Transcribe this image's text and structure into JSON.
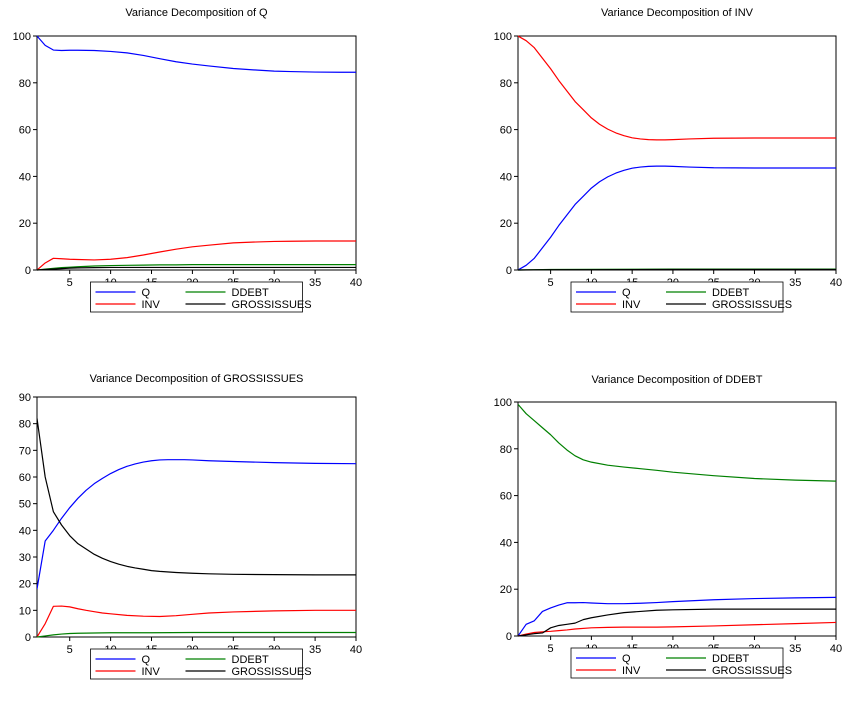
{
  "colors": {
    "Q": "#0000ff",
    "INV": "#ff0000",
    "DDEBT": "#008000",
    "GROSSISSUES": "#000000"
  },
  "legend_labels": [
    "Q",
    "DDEBT",
    "INV",
    "GROSSISSUES"
  ],
  "chart_data": [
    {
      "type": "line",
      "title": "Variance Decomposition of Q",
      "xlabel": "",
      "ylabel": "",
      "xlim": [
        1,
        40
      ],
      "ylim": [
        0,
        100
      ],
      "xticks": [
        5,
        10,
        15,
        20,
        25,
        30,
        35,
        40
      ],
      "yticks": [
        0,
        20,
        40,
        60,
        80,
        100
      ],
      "grid": false,
      "legend": "bottom",
      "series": [
        {
          "name": "Q",
          "x": [
            1,
            2,
            3,
            4,
            5,
            6,
            8,
            10,
            12,
            14,
            16,
            18,
            20,
            22,
            25,
            28,
            30,
            32,
            35,
            38,
            40
          ],
          "values": [
            100,
            96,
            94,
            93.8,
            93.9,
            93.9,
            93.8,
            93.4,
            92.8,
            91.7,
            90.3,
            89,
            88,
            87.2,
            86.1,
            85.4,
            85,
            84.8,
            84.6,
            84.5,
            84.5
          ]
        },
        {
          "name": "INV",
          "x": [
            1,
            2,
            3,
            4,
            5,
            6,
            8,
            10,
            12,
            14,
            16,
            18,
            20,
            22,
            25,
            28,
            30,
            32,
            35,
            38,
            40
          ],
          "values": [
            0,
            3,
            5,
            4.8,
            4.6,
            4.5,
            4.3,
            4.6,
            5.3,
            6.4,
            7.7,
            8.9,
            9.9,
            10.6,
            11.6,
            12,
            12.2,
            12.3,
            12.4,
            12.4,
            12.4
          ]
        },
        {
          "name": "DDEBT",
          "x": [
            1,
            2,
            3,
            4,
            5,
            6,
            8,
            10,
            12,
            14,
            16,
            18,
            20,
            25,
            30,
            35,
            40
          ],
          "values": [
            0,
            0.4,
            0.7,
            1,
            1.2,
            1.4,
            1.7,
            1.9,
            2,
            2.1,
            2.2,
            2.2,
            2.3,
            2.3,
            2.3,
            2.3,
            2.3
          ]
        },
        {
          "name": "GROSSISSUES",
          "x": [
            1,
            2,
            3,
            4,
            5,
            6,
            8,
            10,
            12,
            14,
            16,
            18,
            20,
            25,
            30,
            35,
            40
          ],
          "values": [
            0,
            0.2,
            0.4,
            0.6,
            0.8,
            0.9,
            1,
            1.1,
            1.1,
            1.1,
            1.1,
            1.1,
            1.1,
            1.1,
            1.1,
            1.1,
            1.1
          ]
        }
      ]
    },
    {
      "type": "line",
      "title": "Variance Decomposition of INV",
      "xlabel": "",
      "ylabel": "",
      "xlim": [
        1,
        40
      ],
      "ylim": [
        0,
        100
      ],
      "xticks": [
        5,
        10,
        15,
        20,
        25,
        30,
        35,
        40
      ],
      "yticks": [
        0,
        20,
        40,
        60,
        80,
        100
      ],
      "grid": false,
      "legend": "bottom",
      "series": [
        {
          "name": "Q",
          "x": [
            1,
            2,
            3,
            4,
            5,
            6,
            7,
            8,
            9,
            10,
            11,
            12,
            13,
            14,
            15,
            16,
            17,
            18,
            19,
            20,
            22,
            25,
            30,
            35,
            40
          ],
          "values": [
            0,
            2,
            5,
            9.5,
            14,
            19,
            23.5,
            28,
            31.5,
            35,
            37.7,
            39.8,
            41.4,
            42.6,
            43.5,
            44,
            44.3,
            44.4,
            44.4,
            44.3,
            44,
            43.7,
            43.6,
            43.6,
            43.6
          ]
        },
        {
          "name": "INV",
          "x": [
            1,
            2,
            3,
            4,
            5,
            6,
            7,
            8,
            9,
            10,
            11,
            12,
            13,
            14,
            15,
            16,
            17,
            18,
            19,
            20,
            22,
            25,
            30,
            35,
            40
          ],
          "values": [
            100,
            98,
            95,
            90.5,
            86,
            81,
            76.5,
            72,
            68.5,
            65,
            62.3,
            60.2,
            58.6,
            57.4,
            56.5,
            56,
            55.7,
            55.6,
            55.6,
            55.7,
            56,
            56.3,
            56.4,
            56.4,
            56.4
          ]
        },
        {
          "name": "DDEBT",
          "x": [
            1,
            5,
            10,
            20,
            30,
            40
          ],
          "values": [
            0,
            0.2,
            0.3,
            0.4,
            0.4,
            0.4
          ]
        },
        {
          "name": "GROSSISSUES",
          "x": [
            1,
            5,
            10,
            20,
            30,
            40
          ],
          "values": [
            0,
            0.1,
            0.1,
            0.2,
            0.2,
            0.2
          ]
        }
      ]
    },
    {
      "type": "line",
      "title": "Variance Decomposition of GROSSISSUES",
      "xlabel": "",
      "ylabel": "",
      "xlim": [
        1,
        40
      ],
      "ylim": [
        0,
        90
      ],
      "xticks": [
        5,
        10,
        15,
        20,
        25,
        30,
        35,
        40
      ],
      "yticks": [
        0,
        10,
        20,
        30,
        40,
        50,
        60,
        70,
        80,
        90
      ],
      "grid": false,
      "legend": "bottom",
      "series": [
        {
          "name": "Q",
          "x": [
            1,
            2,
            3,
            4,
            5,
            6,
            7,
            8,
            9,
            10,
            11,
            12,
            13,
            14,
            15,
            16,
            17,
            18,
            19,
            20,
            22,
            25,
            30,
            35,
            40
          ],
          "values": [
            18,
            36,
            40,
            44.5,
            48.5,
            52,
            55,
            57.5,
            59.5,
            61.3,
            62.8,
            64,
            64.9,
            65.6,
            66.1,
            66.4,
            66.5,
            66.5,
            66.5,
            66.4,
            66.1,
            65.8,
            65.4,
            65.1,
            65
          ]
        },
        {
          "name": "INV",
          "x": [
            1,
            2,
            3,
            4,
            5,
            6,
            7,
            8,
            9,
            10,
            12,
            14,
            16,
            18,
            20,
            22,
            25,
            30,
            35,
            40
          ],
          "values": [
            0,
            5,
            11.5,
            11.6,
            11.3,
            10.6,
            10,
            9.5,
            9,
            8.7,
            8.1,
            7.8,
            7.7,
            8,
            8.5,
            9,
            9.4,
            9.8,
            10,
            10
          ]
        },
        {
          "name": "DDEBT",
          "x": [
            1,
            2,
            3,
            4,
            5,
            6,
            8,
            10,
            15,
            20,
            30,
            40
          ],
          "values": [
            0,
            0.4,
            0.8,
            1.1,
            1.3,
            1.4,
            1.5,
            1.6,
            1.6,
            1.7,
            1.7,
            1.7
          ]
        },
        {
          "name": "GROSSISSUES",
          "x": [
            1,
            2,
            3,
            4,
            5,
            6,
            7,
            8,
            9,
            10,
            11,
            12,
            13,
            14,
            15,
            16,
            18,
            20,
            22,
            25,
            30,
            35,
            40
          ],
          "values": [
            82,
            60,
            47,
            42,
            38,
            35,
            33,
            31,
            29.5,
            28.3,
            27.3,
            26.5,
            25.9,
            25.4,
            24.9,
            24.6,
            24.2,
            23.9,
            23.7,
            23.5,
            23.4,
            23.3,
            23.3
          ]
        }
      ]
    },
    {
      "type": "line",
      "title": "Variance Decomposition of DDEBT",
      "xlabel": "",
      "ylabel": "",
      "xlim": [
        1,
        40
      ],
      "ylim": [
        0,
        100
      ],
      "xticks": [
        5,
        10,
        15,
        20,
        25,
        30,
        35,
        40
      ],
      "yticks": [
        0,
        20,
        40,
        60,
        80,
        100
      ],
      "grid": false,
      "legend": "bottom",
      "series": [
        {
          "name": "Q",
          "x": [
            1,
            2,
            3,
            4,
            5,
            6,
            7,
            8,
            9,
            10,
            12,
            14,
            16,
            18,
            20,
            25,
            30,
            35,
            40
          ],
          "values": [
            0,
            5,
            6.5,
            10.5,
            12,
            13.2,
            14.2,
            14.2,
            14.3,
            14.1,
            13.8,
            13.8,
            14,
            14.3,
            14.7,
            15.5,
            16,
            16.3,
            16.5
          ]
        },
        {
          "name": "INV",
          "x": [
            1,
            2,
            3,
            4,
            5,
            6,
            7,
            8,
            10,
            12,
            14,
            16,
            18,
            20,
            25,
            30,
            35,
            40
          ],
          "values": [
            0,
            0.8,
            1.5,
            1.8,
            2,
            2.3,
            2.6,
            3,
            3.5,
            3.7,
            3.8,
            3.8,
            3.8,
            3.9,
            4.3,
            4.8,
            5.3,
            5.8
          ]
        },
        {
          "name": "DDEBT",
          "x": [
            1,
            2,
            3,
            4,
            5,
            6,
            7,
            8,
            9,
            10,
            12,
            14,
            16,
            18,
            20,
            25,
            30,
            35,
            40
          ],
          "values": [
            99,
            95,
            92,
            89,
            86,
            82.5,
            79.5,
            77,
            75.3,
            74.3,
            73,
            72.2,
            71.5,
            70.8,
            70,
            68.5,
            67.3,
            66.6,
            66.2
          ]
        },
        {
          "name": "GROSSISSUES",
          "x": [
            1,
            2,
            3,
            4,
            5,
            6,
            7,
            8,
            9,
            10,
            12,
            14,
            16,
            18,
            20,
            25,
            30,
            35,
            40
          ],
          "values": [
            0,
            0.5,
            1,
            1.3,
            3.5,
            4.5,
            5,
            5.5,
            7,
            7.8,
            9,
            10,
            10.5,
            11,
            11.2,
            11.5,
            11.5,
            11.5,
            11.5
          ]
        }
      ]
    }
  ]
}
